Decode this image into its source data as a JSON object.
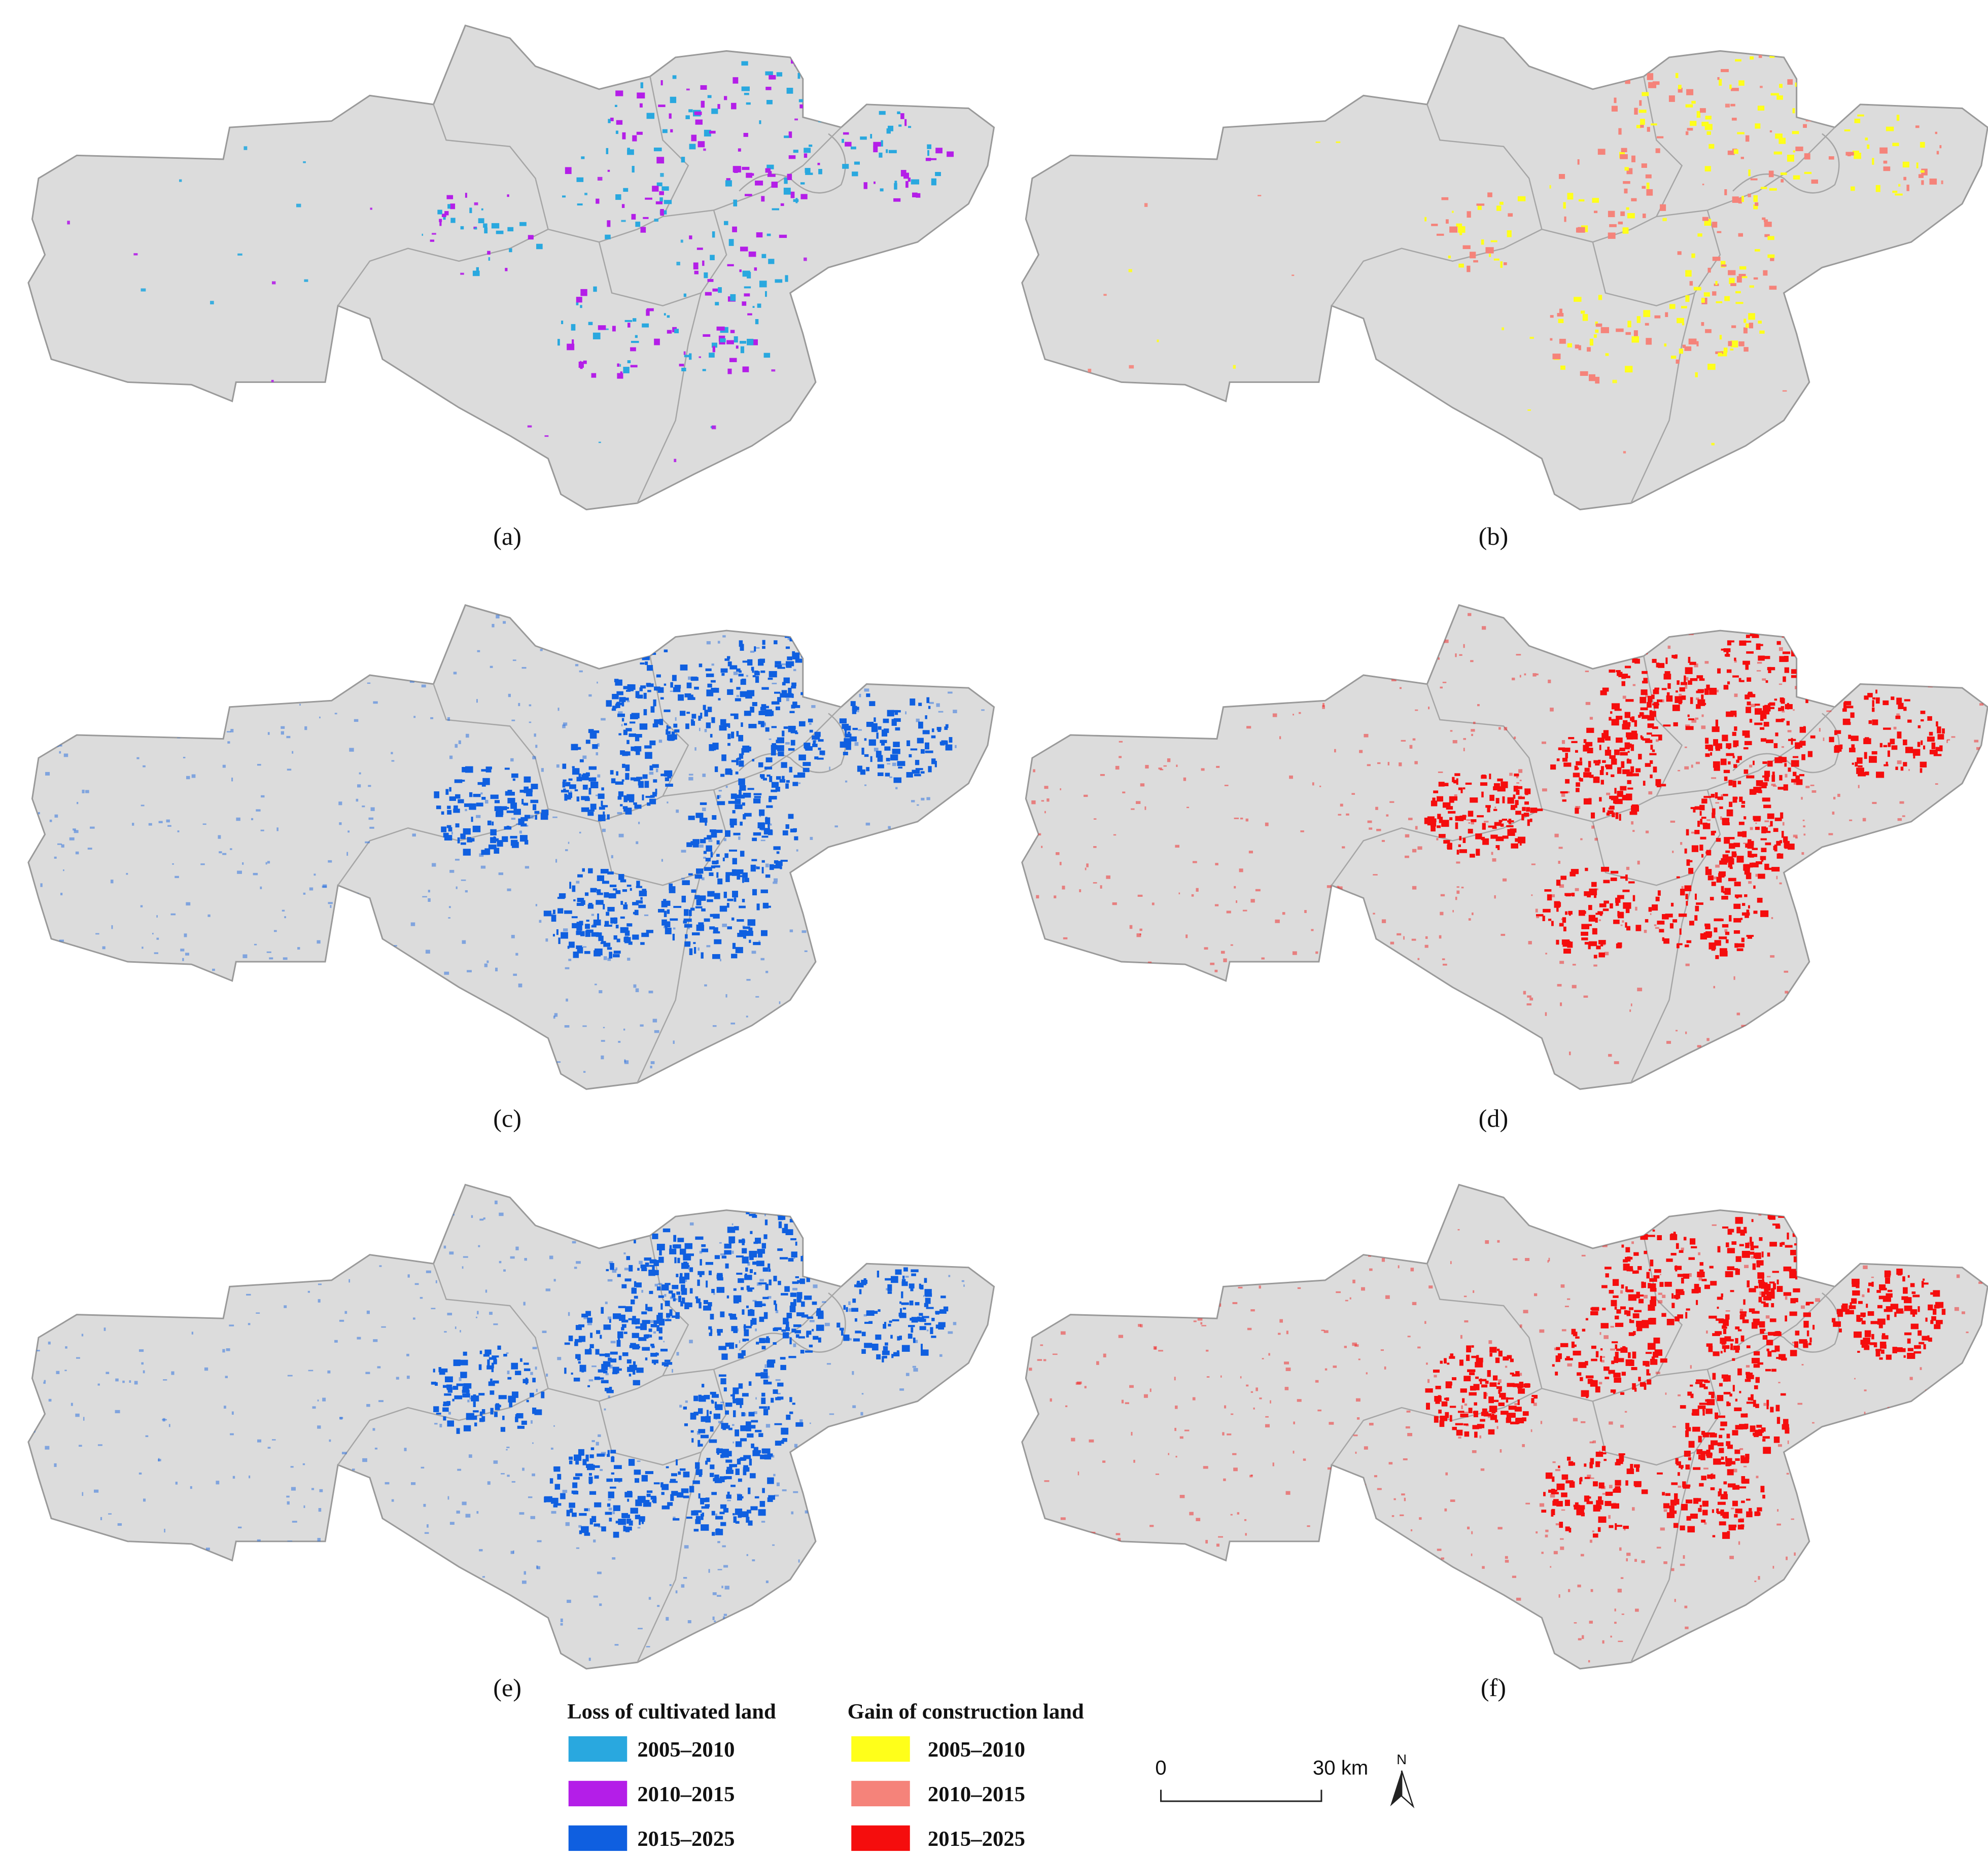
{
  "panels": [
    {
      "label": "(a)"
    },
    {
      "label": "(b)"
    },
    {
      "label": "(c)"
    },
    {
      "label": "(d)"
    },
    {
      "label": "(e)"
    },
    {
      "label": "(f)"
    }
  ],
  "legend": {
    "loss": {
      "title": "Loss of cultivated land",
      "items": [
        {
          "label": "2005–2010",
          "color": "#29a8df"
        },
        {
          "label": "2010–2015",
          "color": "#b41ee8"
        },
        {
          "label": "2015–2025",
          "color": "#0f5fe0"
        }
      ]
    },
    "gain": {
      "title": "Gain of  construction land",
      "items": [
        {
          "label": "2005–2010",
          "color": "#ffff1a"
        },
        {
          "label": "2010–2015",
          "color": "#f5837a"
        },
        {
          "label": "2015–2025",
          "color": "#f50d0d"
        }
      ]
    }
  },
  "scale_bar": {
    "start": "0",
    "end": "30 km"
  },
  "north": "N"
}
